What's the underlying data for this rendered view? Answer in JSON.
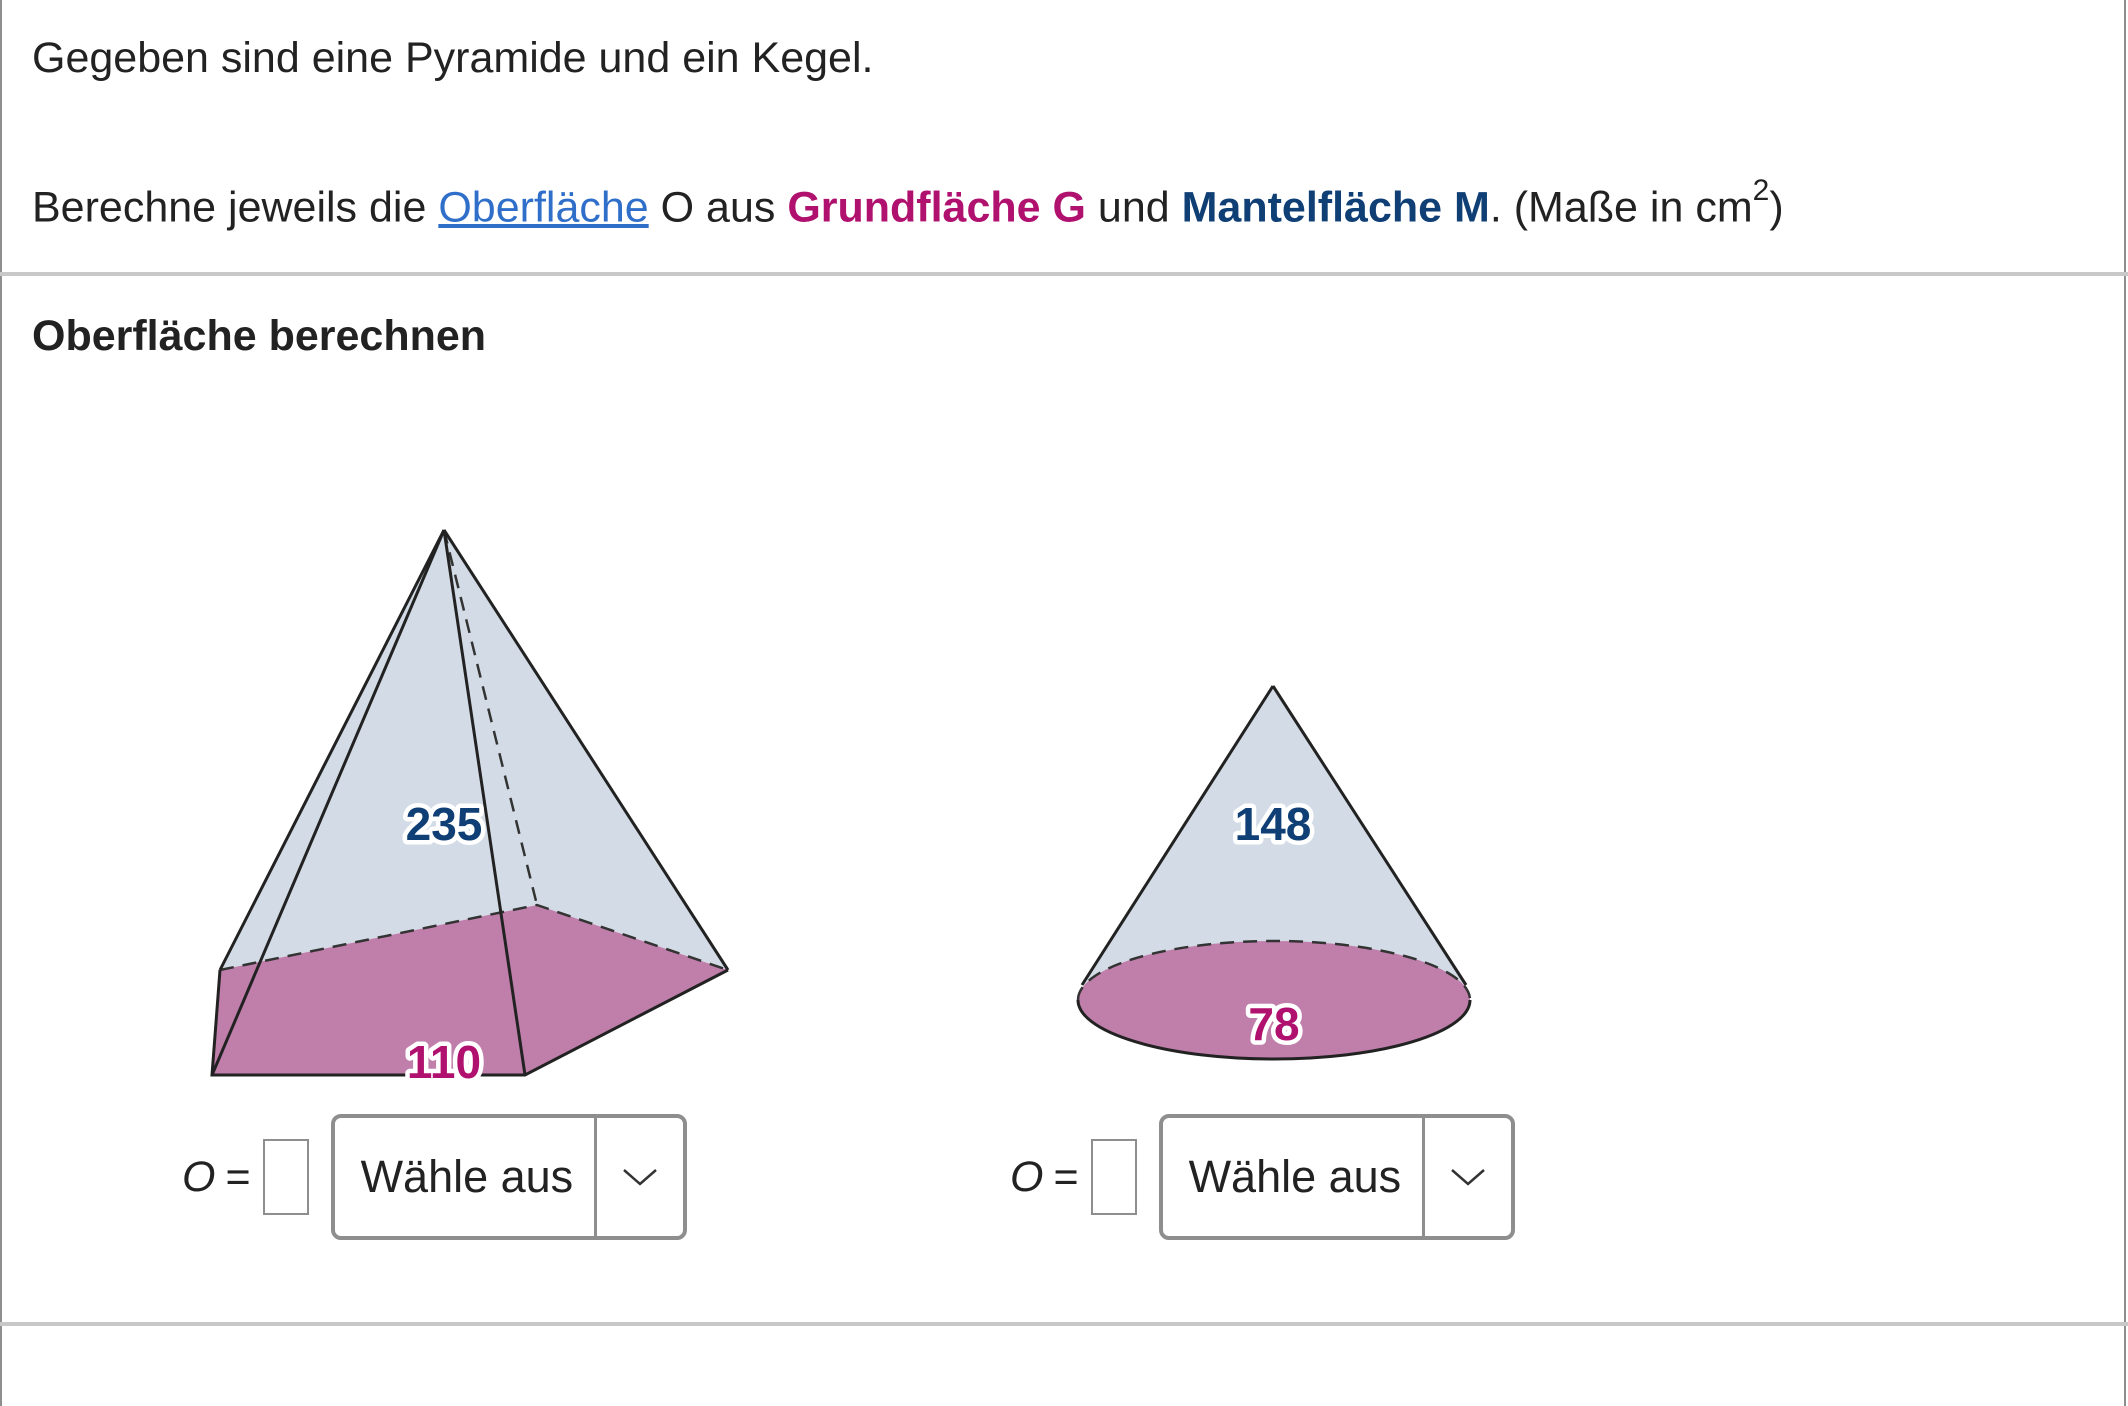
{
  "intro": {
    "line1": "Gegeben sind eine Pyramide und ein Kegel.",
    "line2_prefix": "Berechne jeweils die ",
    "link_text": "Oberfläche",
    "line2_mid1": " O aus ",
    "grundflaeche": "Grundfläche G",
    "line2_mid2": " und ",
    "mantelflaeche": "Mantelfläche M",
    "line2_suffix": ". (Maße in cm",
    "superscript": "2",
    "line2_end": ")"
  },
  "section": {
    "title": "Oberfläche berechnen"
  },
  "pyramid": {
    "mantel_value": "235",
    "grund_value": "110"
  },
  "cone": {
    "mantel_value": "148",
    "grund_value": "78"
  },
  "answers": [
    {
      "label": "O",
      "equals": "=",
      "select_placeholder": "Wähle aus",
      "icon": "chevron-down-icon"
    },
    {
      "label": "O",
      "equals": "=",
      "select_placeholder": "Wähle aus",
      "icon": "chevron-down-icon"
    }
  ],
  "colors": {
    "link": "#2f6fc9",
    "grundflaeche": "#b0106e",
    "mantelflaeche": "#0f3f75",
    "base_fill": "#c07fab",
    "lateral_fill": "#d3dce6"
  }
}
